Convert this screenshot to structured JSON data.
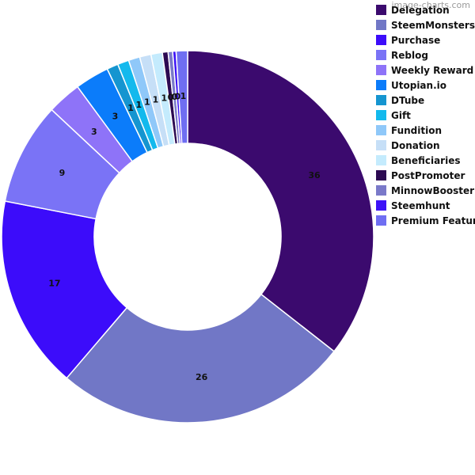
{
  "watermark": "image-charts.com",
  "chart_data": {
    "type": "pie",
    "variant": "donut",
    "categories": [
      "Delegation",
      "SteemMonsters",
      "Purchase",
      "Reblog",
      "Weekly Reward",
      "Utopian.io",
      "DTube",
      "Gift",
      "Fundition",
      "Donation",
      "Beneficiaries",
      "PostPromoter",
      "MinnowBooster",
      "Steemhunt",
      "Premium Feature"
    ],
    "values": [
      36,
      26,
      17,
      9,
      3,
      3,
      1,
      1,
      1,
      1,
      1,
      0.5,
      0.4,
      0.3,
      1
    ],
    "data_labels": [
      "36",
      "26",
      "17",
      "9",
      "3",
      "3",
      "1",
      "1",
      "1",
      "1",
      "1",
      "0",
      "0",
      "0",
      "1"
    ],
    "colors": [
      "#3b0a6e",
      "#7177c6",
      "#3c0cfa",
      "#7a73f6",
      "#8e73f8",
      "#0b7cfa",
      "#1595d0",
      "#13b9ed",
      "#8fc8f9",
      "#c6dff7",
      "#c4ebfd",
      "#2c0a52",
      "#7a79c9",
      "#3d13f7",
      "#6f6ef2"
    ],
    "legend_position": "right"
  }
}
